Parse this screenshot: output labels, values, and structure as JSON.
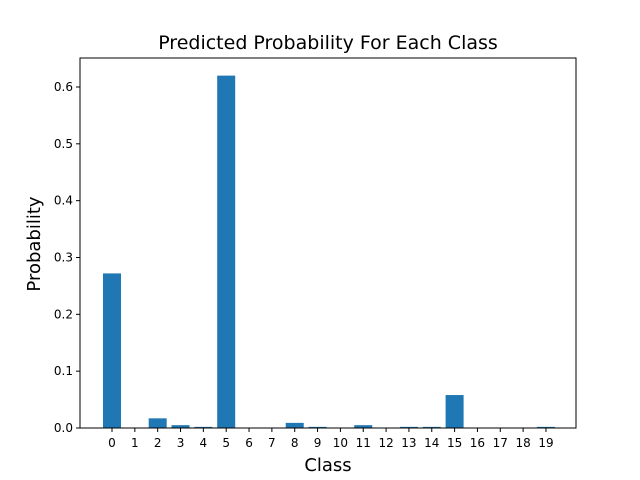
{
  "chart_data": {
    "type": "bar",
    "title": "Predicted Probability For Each Class",
    "xlabel": "Class",
    "ylabel": "Probability",
    "categories": [
      "0",
      "1",
      "2",
      "3",
      "4",
      "5",
      "6",
      "7",
      "8",
      "9",
      "10",
      "11",
      "12",
      "13",
      "14",
      "15",
      "16",
      "17",
      "18",
      "19"
    ],
    "values": [
      0.272,
      0.0003,
      0.017,
      0.005,
      0.002,
      0.62,
      0.0001,
      0.0001,
      0.009,
      0.002,
      0.0002,
      0.005,
      0.0002,
      0.002,
      0.002,
      0.058,
      0.0001,
      0.0001,
      0.0001,
      0.002
    ],
    "yticks": [
      0.0,
      0.1,
      0.2,
      0.3,
      0.4,
      0.5,
      0.6
    ],
    "ytick_labels": [
      "0.0",
      "0.1",
      "0.2",
      "0.3",
      "0.4",
      "0.5",
      "0.6"
    ],
    "ylim": [
      0,
      0.651
    ],
    "bar_color": "#1f77b4",
    "grid": false,
    "legend": "none"
  }
}
